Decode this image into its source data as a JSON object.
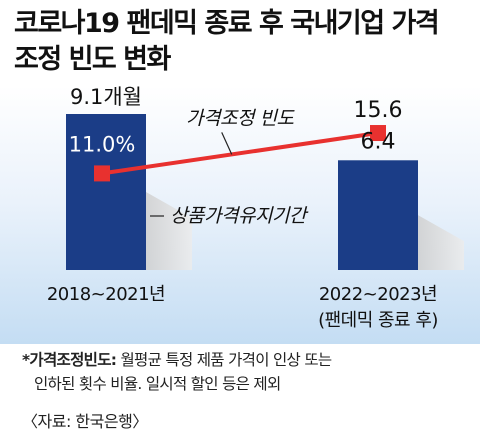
{
  "title": {
    "line1": "코로나19 팬데믹 종료 후 국내기업 가격",
    "line2": "조정 빈도 변화"
  },
  "chart_data": {
    "type": "bar+line",
    "categories": [
      "2018~2021년",
      "2022~2023년"
    ],
    "category_sublabels": [
      "",
      "(팬데믹 종료 후)"
    ],
    "bar_series": {
      "name": "상품가격유지기간",
      "values": [
        9.1,
        6.4
      ],
      "labels": [
        "9.1개월",
        "6.4"
      ],
      "ylim": [
        0,
        10.5
      ],
      "color": "#1b3d87"
    },
    "line_series": {
      "name": "가격조정 빈도",
      "values": [
        11.0,
        15.6
      ],
      "labels": [
        "11.0%",
        "15.6"
      ],
      "ylim": [
        0,
        20.5
      ],
      "color": "#e8312f"
    },
    "grid": false
  },
  "footnote": {
    "head": "*가격조정빈도:",
    "line1_rest": " 월평균 특정 제품 가격이 인상 또는",
    "line2": "인하된 횟수 비율. 일시적 할인 등은 제외"
  },
  "source": "〈자료: 한국은행〉"
}
